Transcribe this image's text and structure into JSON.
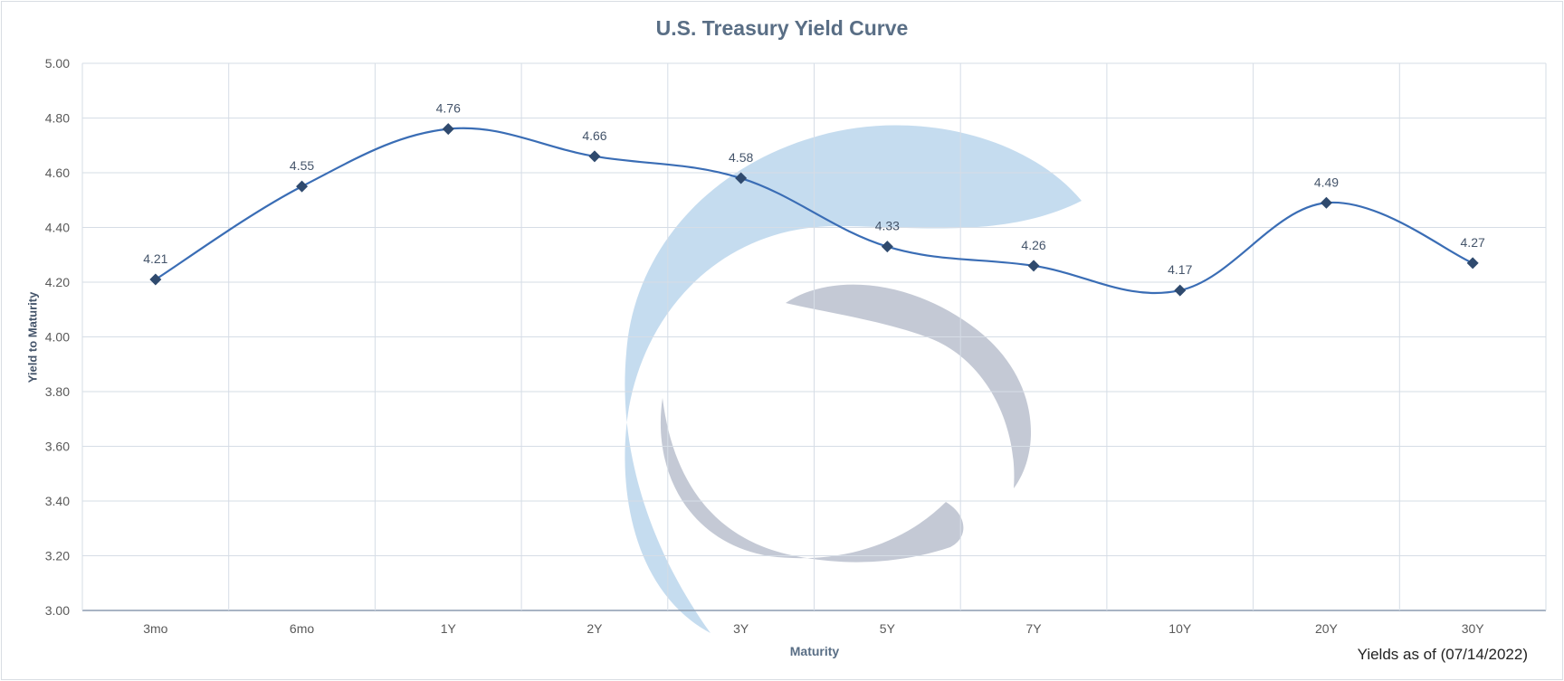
{
  "chart_data": {
    "type": "line",
    "title": "U.S. Treasury Yield Curve",
    "xlabel": "Maturity",
    "ylabel": "Yield to Maturity",
    "categories": [
      "3mo",
      "6mo",
      "1Y",
      "2Y",
      "3Y",
      "5Y",
      "7Y",
      "10Y",
      "20Y",
      "30Y"
    ],
    "series": [
      {
        "values": [
          4.21,
          4.55,
          4.76,
          4.66,
          4.58,
          4.33,
          4.26,
          4.17,
          4.49,
          4.27
        ]
      }
    ],
    "ylim": [
      3.0,
      5.0
    ],
    "yticks": [
      "3.00",
      "3.20",
      "3.40",
      "3.60",
      "3.80",
      "4.00",
      "4.20",
      "4.40",
      "4.60",
      "4.80",
      "5.00"
    ],
    "grid": true,
    "legend": "none",
    "smooth": true,
    "colors": {
      "line": "#3a6db5",
      "marker": "#2f4a6e",
      "grid": "#d6dde6",
      "axis": "#8c9bb0"
    }
  },
  "footer_note": "Yields as of (07/14/2022)"
}
